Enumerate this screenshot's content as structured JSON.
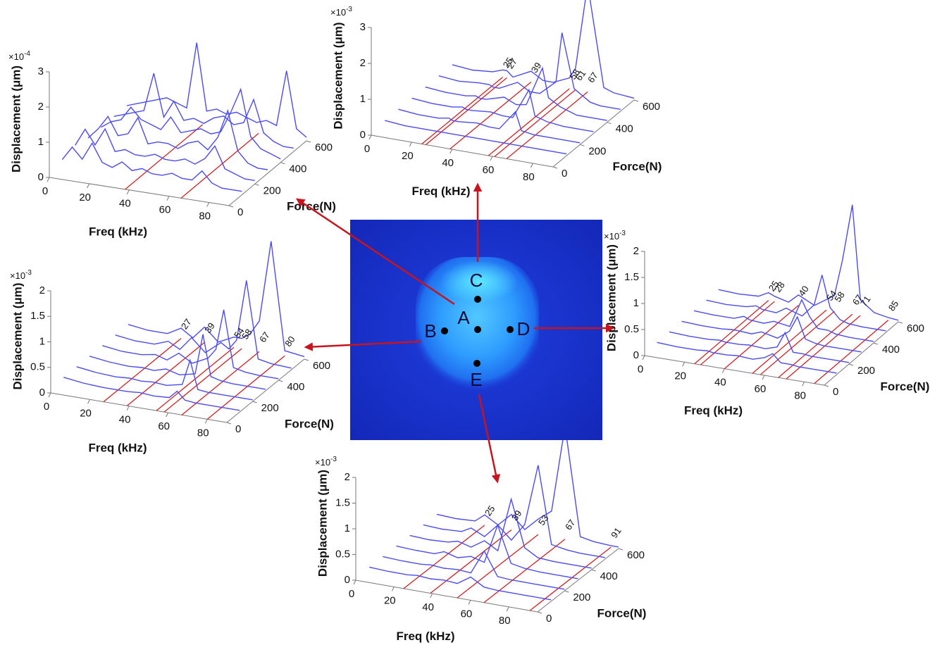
{
  "chart_data": [
    {
      "type": "waterfall",
      "x_label": "Freq (kHz)",
      "y_label": "Force(N)",
      "z_label": "Displacement (μm)",
      "z_exponent": {
        "base": "×10",
        "power": "-4"
      },
      "xlim": [
        0,
        90
      ],
      "xticks": [
        0,
        20,
        40,
        60,
        80
      ],
      "ylim": [
        0,
        600
      ],
      "yticks": [
        0,
        200,
        400,
        600
      ],
      "zlim": [
        0,
        3
      ],
      "zticks": [
        0,
        1,
        2,
        3
      ],
      "x": [
        0,
        5,
        10,
        15,
        20,
        25,
        30,
        35,
        40,
        45,
        50,
        55,
        60,
        65,
        70,
        75,
        80,
        85,
        90
      ],
      "series": [
        {
          "force": 100,
          "color": "#4b4bf5",
          "values": [
            0.2,
            0.6,
            0.3,
            0.8,
            0.3,
            0.2,
            0.4,
            0.2,
            0.3,
            0.2,
            0.2,
            0.3,
            0.2,
            0.2,
            0.5,
            0.2,
            0.1,
            0.1,
            0.1
          ]
        },
        {
          "force": 200,
          "color": "#4b4bf5",
          "values": [
            0.3,
            0.8,
            0.4,
            0.9,
            0.3,
            0.4,
            0.3,
            0.3,
            0.4,
            0.3,
            0.3,
            0.4,
            0.3,
            0.5,
            0.9,
            0.3,
            0.2,
            0.1,
            0.1
          ]
        },
        {
          "force": 300,
          "color": "#4b4bf5",
          "values": [
            0.2,
            0.5,
            0.9,
            0.4,
            0.5,
            1.0,
            0.3,
            0.4,
            0.4,
            0.3,
            0.5,
            0.6,
            0.4,
            0.8,
            1.6,
            0.5,
            0.2,
            0.1,
            0.1
          ]
        },
        {
          "force": 400,
          "color": "#4b4bf5",
          "values": [
            0.2,
            0.4,
            0.5,
            0.9,
            0.6,
            0.5,
            0.4,
            0.8,
            0.4,
            0.5,
            0.6,
            0.5,
            0.6,
            1.2,
            1.9,
            0.6,
            0.3,
            0.2,
            0.1
          ]
        },
        {
          "force": 500,
          "color": "#4b4bf5",
          "values": [
            0.2,
            0.3,
            0.4,
            0.5,
            1.6,
            0.4,
            0.9,
            0.4,
            0.5,
            0.4,
            0.6,
            0.7,
            0.5,
            0.6,
            1.3,
            0.4,
            0.2,
            0.1,
            0.1
          ]
        },
        {
          "force": 600,
          "color": "#4b4bf5",
          "values": [
            0.2,
            0.3,
            0.4,
            0.5,
            0.6,
            0.5,
            0.4,
            2.3,
            0.4,
            0.5,
            0.4,
            0.5,
            0.4,
            0.3,
            0.4,
            0.3,
            1.9,
            0.3,
            0.1
          ]
        }
      ],
      "modes": [
        38,
        66
      ],
      "mode_color": "#d42020",
      "show_mode_labels": false
    },
    {
      "type": "waterfall",
      "x_label": "Freq (kHz)",
      "y_label": "Force(N)",
      "z_label": "Displacement (μm)",
      "z_exponent": {
        "base": "×10",
        "power": "-3"
      },
      "xlim": [
        0,
        90
      ],
      "xticks": [
        0,
        20,
        40,
        60,
        80
      ],
      "ylim": [
        0,
        600
      ],
      "yticks": [
        0,
        200,
        400,
        600
      ],
      "zlim": [
        0,
        3
      ],
      "zticks": [
        0,
        1,
        2,
        3
      ],
      "x": [
        0,
        10,
        20,
        25,
        27,
        30,
        39,
        45,
        50,
        58,
        61,
        67,
        75,
        80,
        90
      ],
      "series": [
        {
          "force": 100,
          "color": "#4b4bf5",
          "values": [
            0.1,
            0.05,
            0.05,
            0.05,
            0.05,
            0.05,
            0.05,
            0.05,
            0.05,
            0.05,
            0.05,
            0.05,
            0.05,
            0.05,
            0.05
          ]
        },
        {
          "force": 200,
          "color": "#4b4bf5",
          "values": [
            0.1,
            0.05,
            0.05,
            0.1,
            0.05,
            0.05,
            0.1,
            0.05,
            0.05,
            0.6,
            0.1,
            0.05,
            0.05,
            0.05,
            0.05
          ]
        },
        {
          "force": 300,
          "color": "#4b4bf5",
          "values": [
            0.1,
            0.05,
            0.05,
            0.1,
            0.05,
            0.05,
            0.1,
            0.05,
            0.05,
            0.9,
            0.2,
            0.1,
            0.05,
            0.05,
            0.05
          ]
        },
        {
          "force": 400,
          "color": "#4b4bf5",
          "values": [
            0.1,
            0.05,
            0.05,
            0.1,
            0.05,
            0.05,
            0.2,
            0.05,
            0.1,
            1.2,
            0.4,
            0.2,
            0.05,
            0.05,
            0.05
          ]
        },
        {
          "force": 500,
          "color": "#4b4bf5",
          "values": [
            0.1,
            0.05,
            0.1,
            0.1,
            0.05,
            0.05,
            0.3,
            0.1,
            0.1,
            0.5,
            1.9,
            0.4,
            0.1,
            0.05,
            0.05
          ]
        },
        {
          "force": 600,
          "color": "#4b4bf5",
          "values": [
            0.1,
            0.05,
            0.1,
            0.2,
            0.2,
            0.05,
            0.3,
            0.1,
            0.1,
            0.3,
            0.6,
            3.0,
            0.2,
            0.1,
            0.05
          ]
        }
      ],
      "modes": [
        25,
        27,
        39,
        58,
        61,
        67
      ],
      "mode_color": "#d42020",
      "show_mode_labels": true
    },
    {
      "type": "waterfall",
      "x_label": "Freq (kHz)",
      "y_label": "Force(N)",
      "z_label": "Displacement (μm)",
      "z_exponent": {
        "base": "×10",
        "power": "-3"
      },
      "xlim": [
        0,
        90
      ],
      "xticks": [
        0,
        20,
        40,
        60,
        80
      ],
      "ylim": [
        0,
        600
      ],
      "yticks": [
        0,
        200,
        400,
        600
      ],
      "zlim": [
        0,
        2
      ],
      "zticks": [
        0,
        0.5,
        1,
        1.5,
        2
      ],
      "x": [
        0,
        10,
        20,
        25,
        28,
        35,
        40,
        48,
        54,
        58,
        62,
        67,
        71,
        78,
        85,
        90
      ],
      "series": [
        {
          "force": 100,
          "color": "#4b4bf5",
          "values": [
            0.05,
            0.03,
            0.03,
            0.05,
            0.03,
            0.03,
            0.05,
            0.03,
            0.1,
            0.2,
            0.05,
            0.05,
            0.03,
            0.03,
            0.03,
            0.03
          ]
        },
        {
          "force": 200,
          "color": "#4b4bf5",
          "values": [
            0.05,
            0.03,
            0.03,
            0.05,
            0.03,
            0.03,
            0.05,
            0.03,
            0.1,
            0.4,
            0.05,
            0.05,
            0.03,
            0.03,
            0.03,
            0.03
          ]
        },
        {
          "force": 300,
          "color": "#4b4bf5",
          "values": [
            0.05,
            0.03,
            0.03,
            0.05,
            0.05,
            0.03,
            0.1,
            0.03,
            0.2,
            0.5,
            0.1,
            0.05,
            0.03,
            0.03,
            0.03,
            0.03
          ]
        },
        {
          "force": 400,
          "color": "#4b4bf5",
          "values": [
            0.05,
            0.03,
            0.03,
            0.1,
            0.05,
            0.03,
            0.1,
            0.05,
            0.6,
            0.3,
            0.1,
            0.1,
            0.05,
            0.03,
            0.03,
            0.03
          ]
        },
        {
          "force": 500,
          "color": "#4b4bf5",
          "values": [
            0.05,
            0.03,
            0.05,
            0.1,
            0.05,
            0.03,
            0.15,
            0.05,
            0.3,
            0.9,
            0.3,
            0.1,
            0.05,
            0.03,
            0.03,
            0.03
          ]
        },
        {
          "force": 600,
          "color": "#4b4bf5",
          "values": [
            0.05,
            0.03,
            0.05,
            0.15,
            0.1,
            0.03,
            0.2,
            0.05,
            0.2,
            0.3,
            1.0,
            2.1,
            0.3,
            0.1,
            0.05,
            0.03
          ]
        }
      ],
      "modes": [
        25,
        28,
        40,
        54,
        58,
        67,
        71,
        85
      ],
      "mode_color": "#d42020",
      "show_mode_labels": true
    },
    {
      "type": "waterfall",
      "x_label": "Freq (kHz)",
      "y_label": "Force(N)",
      "z_label": "Displacement (μm)",
      "z_exponent": {
        "base": "×10",
        "power": "-3"
      },
      "xlim": [
        0,
        90
      ],
      "xticks": [
        0,
        20,
        40,
        60,
        80
      ],
      "ylim": [
        0,
        600
      ],
      "yticks": [
        0,
        200,
        400,
        600
      ],
      "zlim": [
        0,
        2
      ],
      "zticks": [
        0,
        0.5,
        1,
        1.5,
        2
      ],
      "x": [
        0,
        10,
        20,
        27,
        33,
        39,
        46,
        54,
        58,
        62,
        67,
        73,
        80,
        90
      ],
      "series": [
        {
          "force": 100,
          "color": "#4b4bf5",
          "values": [
            0.1,
            0.05,
            0.03,
            0.03,
            0.03,
            0.05,
            0.03,
            0.05,
            0.2,
            0.05,
            0.03,
            0.03,
            0.03,
            0.03
          ]
        },
        {
          "force": 200,
          "color": "#4b4bf5",
          "values": [
            0.1,
            0.05,
            0.03,
            0.05,
            0.03,
            0.05,
            0.03,
            0.1,
            0.6,
            0.05,
            0.03,
            0.03,
            0.03,
            0.03
          ]
        },
        {
          "force": 300,
          "color": "#4b4bf5",
          "values": [
            0.1,
            0.05,
            0.03,
            0.05,
            0.03,
            0.1,
            0.03,
            0.1,
            0.9,
            0.1,
            0.05,
            0.03,
            0.03,
            0.03
          ]
        },
        {
          "force": 400,
          "color": "#4b4bf5",
          "values": [
            0.1,
            0.05,
            0.05,
            0.1,
            0.03,
            0.2,
            0.05,
            0.2,
            0.4,
            1.2,
            0.1,
            0.05,
            0.03,
            0.03
          ]
        },
        {
          "force": 500,
          "color": "#4b4bf5",
          "values": [
            0.1,
            0.05,
            0.05,
            0.15,
            0.03,
            0.3,
            0.05,
            0.3,
            0.2,
            0.4,
            1.6,
            0.1,
            0.05,
            0.03
          ]
        },
        {
          "force": 600,
          "color": "#4b4bf5",
          "values": [
            0.1,
            0.05,
            0.05,
            0.2,
            0.05,
            0.3,
            0.05,
            0.2,
            0.2,
            0.3,
            0.6,
            2.2,
            0.1,
            0.05
          ]
        }
      ],
      "modes": [
        27,
        39,
        54,
        58,
        67,
        80
      ],
      "mode_color": "#d42020",
      "show_mode_labels": true
    },
    {
      "type": "waterfall",
      "x_label": "Freq (kHz)",
      "y_label": "Force(N)",
      "z_label": "Displacement (μm)",
      "z_exponent": {
        "base": "×10",
        "power": "-3"
      },
      "xlim": [
        0,
        95
      ],
      "xticks": [
        0,
        20,
        40,
        60,
        80
      ],
      "ylim": [
        0,
        600
      ],
      "yticks": [
        0,
        200,
        400,
        600
      ],
      "zlim": [
        0,
        2
      ],
      "zticks": [
        0,
        0.5,
        1,
        1.5,
        2
      ],
      "x": [
        0,
        10,
        20,
        25,
        32,
        39,
        46,
        53,
        60,
        67,
        75,
        82,
        91,
        95
      ],
      "series": [
        {
          "force": 100,
          "color": "#4b4bf5",
          "values": [
            0.05,
            0.03,
            0.03,
            0.05,
            0.03,
            0.05,
            0.03,
            0.2,
            0.05,
            0.03,
            0.03,
            0.03,
            0.03,
            0.03
          ]
        },
        {
          "force": 200,
          "color": "#4b4bf5",
          "values": [
            0.05,
            0.03,
            0.03,
            0.05,
            0.03,
            0.05,
            0.03,
            0.5,
            0.05,
            0.03,
            0.03,
            0.03,
            0.03,
            0.03
          ]
        },
        {
          "force": 300,
          "color": "#4b4bf5",
          "values": [
            0.05,
            0.03,
            0.03,
            0.1,
            0.03,
            0.1,
            0.03,
            0.8,
            0.1,
            0.05,
            0.03,
            0.03,
            0.03,
            0.03
          ]
        },
        {
          "force": 400,
          "color": "#4b4bf5",
          "values": [
            0.05,
            0.03,
            0.05,
            0.1,
            0.03,
            0.2,
            0.05,
            1.1,
            0.2,
            0.05,
            0.03,
            0.03,
            0.03,
            0.03
          ]
        },
        {
          "force": 500,
          "color": "#4b4bf5",
          "values": [
            0.05,
            0.03,
            0.05,
            0.15,
            0.03,
            0.3,
            0.05,
            0.4,
            1.6,
            0.1,
            0.05,
            0.03,
            0.03,
            0.03
          ]
        },
        {
          "force": 600,
          "color": "#4b4bf5",
          "values": [
            0.05,
            0.03,
            0.05,
            0.2,
            0.05,
            0.3,
            0.05,
            0.3,
            0.5,
            2.2,
            0.1,
            0.05,
            0.03,
            0.03
          ]
        }
      ],
      "modes": [
        25,
        39,
        53,
        67,
        91
      ],
      "mode_color": "#d42020",
      "show_mode_labels": true
    }
  ],
  "map": {
    "points": [
      "A",
      "B",
      "C",
      "D",
      "E"
    ]
  }
}
